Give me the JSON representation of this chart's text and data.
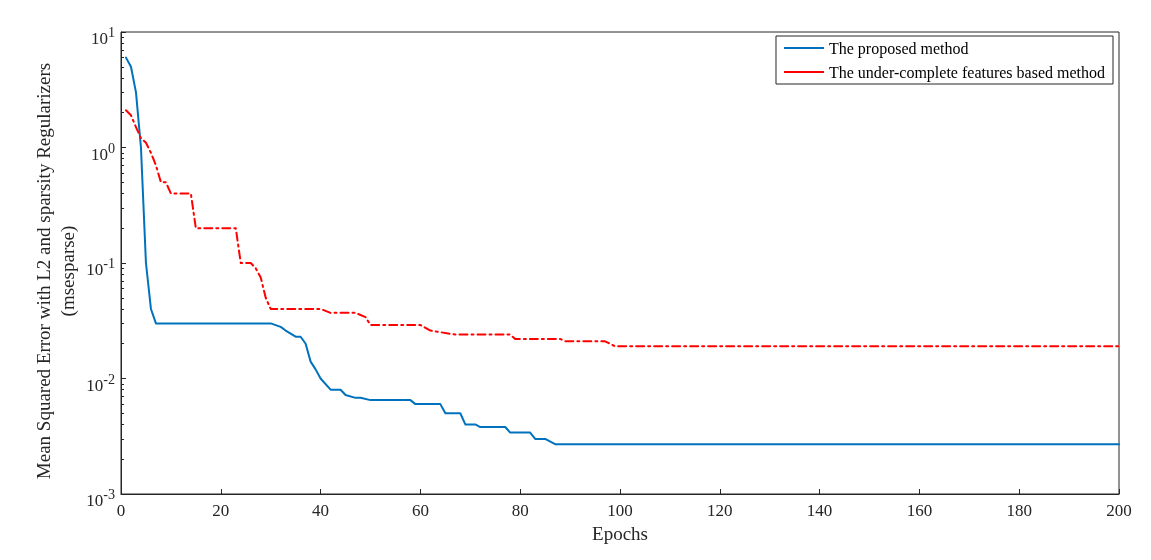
{
  "chart_data": {
    "type": "line",
    "xlabel": "Epochs",
    "ylabel": "Mean Squared Error with L2 and sparsity Regularizers (msesparse)",
    "series": [
      {
        "name": "The proposed method",
        "color": "#0072bd",
        "line_style": "solid",
        "x": [
          1,
          2,
          3,
          4,
          5,
          6,
          7,
          30,
          32,
          33,
          35,
          36,
          37,
          38,
          39,
          40,
          42,
          44,
          45,
          47,
          48,
          50,
          58,
          59,
          64,
          65,
          68,
          69,
          71,
          72,
          77,
          78,
          82,
          83,
          85,
          87,
          200
        ],
        "values": [
          6,
          5,
          3,
          1,
          0.1,
          0.04,
          0.03,
          0.03,
          0.028,
          0.026,
          0.023,
          0.023,
          0.02,
          0.014,
          0.012,
          0.01,
          0.008,
          0.008,
          0.0072,
          0.0068,
          0.0068,
          0.0065,
          0.0065,
          0.006,
          0.006,
          0.005,
          0.005,
          0.004,
          0.004,
          0.0038,
          0.0038,
          0.0034,
          0.0034,
          0.003,
          0.003,
          0.0027,
          0.0027
        ]
      },
      {
        "name": "The under-complete features based method",
        "color": "#ff0000",
        "line_style": "dashed",
        "x": [
          1,
          2,
          3,
          4,
          5,
          6,
          7,
          8,
          9,
          10,
          14,
          15,
          23,
          24,
          26,
          27,
          28,
          29,
          30,
          40,
          42,
          47,
          49,
          50,
          60,
          62,
          67,
          78,
          79,
          88,
          89,
          97,
          99,
          200
        ],
        "values": [
          2.1,
          1.9,
          1.5,
          1.2,
          1.1,
          0.9,
          0.7,
          0.5,
          0.5,
          0.4,
          0.4,
          0.2,
          0.2,
          0.1,
          0.1,
          0.09,
          0.075,
          0.05,
          0.04,
          0.04,
          0.037,
          0.037,
          0.034,
          0.029,
          0.029,
          0.026,
          0.024,
          0.024,
          0.022,
          0.022,
          0.021,
          0.021,
          0.019,
          0.019
        ]
      }
    ],
    "log": "y",
    "xlim": [
      0,
      200
    ],
    "xticks": [
      0,
      20,
      40,
      60,
      80,
      100,
      120,
      140,
      160,
      180,
      200
    ],
    "ylim": [
      0.001,
      10
    ],
    "yticks": [
      {
        "value": 0.001,
        "label": "10$^{-3}$"
      },
      {
        "value": 0.01,
        "label": "10$^{-2}$"
      },
      {
        "value": 0.1,
        "label": "10$^{-1}$"
      },
      {
        "value": 1,
        "label": "10$^{0}$"
      },
      {
        "value": 10,
        "label": "10$^{1}$"
      }
    ],
    "grid": false,
    "legend": "top right",
    "marker": "none"
  }
}
